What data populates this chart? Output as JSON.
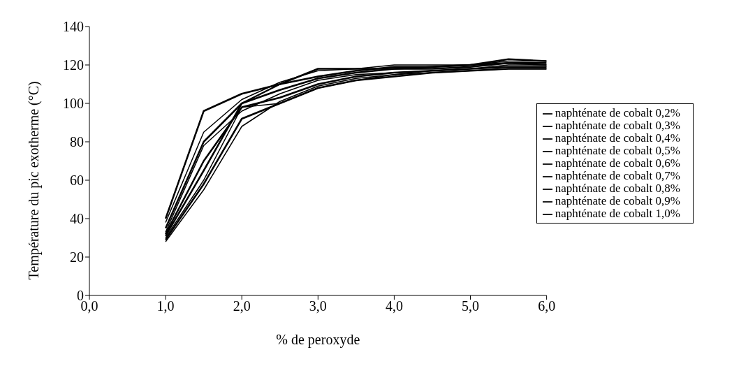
{
  "chart_data": {
    "type": "line",
    "xlabel": "% de peroxyde",
    "ylabel": "Température du pic exotherme (°C)",
    "x": [
      1,
      1.5,
      2,
      2.5,
      3,
      3.5,
      4,
      4.5,
      5,
      5.5,
      6
    ],
    "series": [
      {
        "name": "naphténate de cobalt 0,2%",
        "color": "#000000",
        "values": [
          40,
          96,
          105,
          110,
          114,
          117,
          119,
          119,
          120,
          121,
          121
        ]
      },
      {
        "name": "naphténate de cobalt 0,3%",
        "color": "#000000",
        "values": [
          38,
          85,
          102,
          111,
          117,
          118,
          120,
          120,
          120,
          122,
          122
        ]
      },
      {
        "name": "naphténate de cobalt 0,4%",
        "color": "#000000",
        "values": [
          35,
          80,
          100,
          107,
          113,
          116,
          118,
          119,
          120,
          123,
          122
        ]
      },
      {
        "name": "naphténate de cobalt 0,5%",
        "color": "#000000",
        "values": [
          33,
          78,
          96,
          105,
          112,
          115,
          116,
          117,
          118,
          120,
          120
        ]
      },
      {
        "name": "naphténate de cobalt 0,6%",
        "color": "#000000",
        "values": [
          32,
          70,
          98,
          103,
          110,
          114,
          116,
          117,
          118,
          119,
          119
        ]
      },
      {
        "name": "naphténate de cobalt 0,7%",
        "color": "#000000",
        "values": [
          30,
          60,
          98,
          100,
          108,
          112,
          115,
          117,
          118,
          119,
          119
        ]
      },
      {
        "name": "naphténate de cobalt 0,8%",
        "color": "#000000",
        "values": [
          29,
          58,
          92,
          100,
          108,
          112,
          114,
          116,
          117,
          118,
          118
        ]
      },
      {
        "name": "naphténate de cobalt 0,9%",
        "color": "#000000",
        "values": [
          28,
          55,
          88,
          101,
          109,
          113,
          115,
          116,
          117,
          118,
          118
        ]
      },
      {
        "name": "naphténate de cobalt 1,0%",
        "color": "#000000",
        "values": [
          31,
          65,
          100,
          110,
          118,
          118,
          118,
          118,
          119,
          121,
          120
        ]
      }
    ],
    "xlim": [
      0,
      6
    ],
    "xticks": [
      {
        "value": 0,
        "label": "0,0"
      },
      {
        "value": 1,
        "label": "1,0"
      },
      {
        "value": 2,
        "label": "2,0"
      },
      {
        "value": 3,
        "label": "3,0"
      },
      {
        "value": 4,
        "label": "4,0"
      },
      {
        "value": 5,
        "label": "5,0"
      },
      {
        "value": 6,
        "label": "6,0"
      }
    ],
    "ylim": [
      0,
      140
    ],
    "yticks": [
      0,
      20,
      40,
      60,
      80,
      100,
      120,
      140
    ],
    "legend": "right",
    "grid": false,
    "marker": "none",
    "line_style": "solid"
  }
}
